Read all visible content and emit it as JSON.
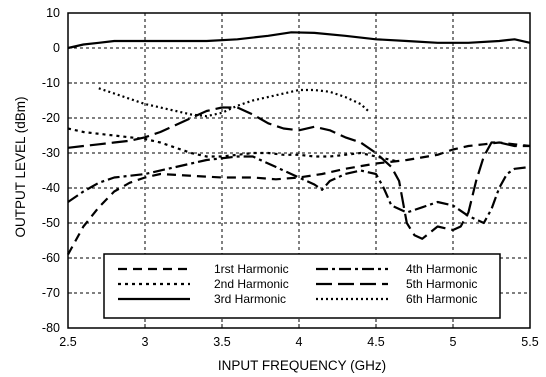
{
  "chart_data": {
    "type": "line",
    "title": "",
    "xlabel": "INPUT FREQUENCY (GHz)",
    "ylabel": "OUTPUT LEVEL (dBm)",
    "xlim": [
      2.5,
      5.5
    ],
    "ylim": [
      -80,
      10
    ],
    "x_ticks": [
      "2.5",
      "3",
      "3.5",
      "4",
      "4.5",
      "5",
      "5.5"
    ],
    "y_ticks": [
      "10",
      "0",
      "-10",
      "-20",
      "-30",
      "-40",
      "-50",
      "-60",
      "-70",
      "-80"
    ],
    "grid": true,
    "legend_position": "bottom-center",
    "series": [
      {
        "name": "1rst Harmonic",
        "style": "dash",
        "color": "#000000",
        "points": [
          [
            2.5,
            -59
          ],
          [
            2.55,
            -55
          ],
          [
            2.6,
            -51
          ],
          [
            2.7,
            -45.5
          ],
          [
            2.8,
            -41
          ],
          [
            2.9,
            -38.5
          ],
          [
            3.0,
            -37
          ],
          [
            3.1,
            -36
          ],
          [
            3.3,
            -36.5
          ],
          [
            3.5,
            -37
          ],
          [
            3.7,
            -37
          ],
          [
            3.85,
            -37.5
          ],
          [
            4.0,
            -37
          ],
          [
            4.15,
            -36
          ],
          [
            4.3,
            -34.5
          ],
          [
            4.5,
            -33
          ],
          [
            4.7,
            -32
          ],
          [
            4.9,
            -30.5
          ],
          [
            5.0,
            -29
          ],
          [
            5.1,
            -28
          ],
          [
            5.2,
            -27.5
          ],
          [
            5.3,
            -27
          ],
          [
            5.4,
            -27.5
          ],
          [
            5.5,
            -28
          ]
        ]
      },
      {
        "name": "2nd Harmonic",
        "style": "dot",
        "color": "#000000",
        "points": [
          [
            2.5,
            -23
          ],
          [
            2.6,
            -24
          ],
          [
            2.7,
            -24.5
          ],
          [
            2.8,
            -25
          ],
          [
            2.9,
            -25.5
          ],
          [
            3.0,
            -26
          ],
          [
            3.1,
            -27
          ],
          [
            3.2,
            -28.5
          ],
          [
            3.3,
            -30
          ],
          [
            3.4,
            -31
          ],
          [
            3.5,
            -31
          ],
          [
            3.6,
            -30.5
          ],
          [
            3.7,
            -30
          ],
          [
            3.8,
            -30
          ],
          [
            3.9,
            -30.5
          ],
          [
            4.0,
            -30.5
          ],
          [
            4.1,
            -31
          ],
          [
            4.2,
            -31
          ],
          [
            4.3,
            -30.5
          ],
          [
            4.4,
            -30
          ],
          [
            4.5,
            -31
          ],
          [
            4.6,
            -32
          ],
          [
            4.65,
            -32.5
          ]
        ]
      },
      {
        "name": "3rd Harmonic",
        "style": "solid",
        "color": "#000000",
        "points": [
          [
            2.5,
            0
          ],
          [
            2.6,
            1
          ],
          [
            2.7,
            1.5
          ],
          [
            2.8,
            2
          ],
          [
            3.0,
            2
          ],
          [
            3.2,
            2
          ],
          [
            3.4,
            2
          ],
          [
            3.6,
            2.5
          ],
          [
            3.8,
            3.5
          ],
          [
            3.95,
            4.5
          ],
          [
            4.1,
            4.3
          ],
          [
            4.3,
            3.5
          ],
          [
            4.5,
            2.5
          ],
          [
            4.7,
            2
          ],
          [
            4.9,
            1.5
          ],
          [
            5.1,
            1.5
          ],
          [
            5.3,
            2
          ],
          [
            5.4,
            2.5
          ],
          [
            5.5,
            1.5
          ]
        ]
      },
      {
        "name": "4th Harmonic",
        "style": "dashdot",
        "color": "#000000",
        "points": [
          [
            2.5,
            -44
          ],
          [
            2.6,
            -41
          ],
          [
            2.7,
            -38.5
          ],
          [
            2.8,
            -37
          ],
          [
            2.9,
            -36.5
          ],
          [
            3.0,
            -36
          ],
          [
            3.2,
            -34
          ],
          [
            3.4,
            -32
          ],
          [
            3.6,
            -31
          ],
          [
            3.7,
            -31
          ],
          [
            3.8,
            -33
          ],
          [
            3.9,
            -35
          ],
          [
            4.0,
            -37
          ],
          [
            4.1,
            -39
          ],
          [
            4.15,
            -40.5
          ],
          [
            4.2,
            -38
          ],
          [
            4.3,
            -36
          ],
          [
            4.4,
            -35
          ],
          [
            4.5,
            -36
          ],
          [
            4.55,
            -40
          ],
          [
            4.6,
            -45
          ],
          [
            4.7,
            -47
          ],
          [
            4.8,
            -45.5
          ],
          [
            4.9,
            -44
          ],
          [
            5.0,
            -45
          ],
          [
            5.1,
            -48
          ],
          [
            5.2,
            -50
          ],
          [
            5.25,
            -46
          ],
          [
            5.3,
            -40
          ],
          [
            5.35,
            -36
          ],
          [
            5.4,
            -34.5
          ],
          [
            5.5,
            -34
          ]
        ]
      },
      {
        "name": "5th Harmonic",
        "style": "longdash",
        "color": "#000000",
        "points": [
          [
            2.5,
            -28.5
          ],
          [
            2.6,
            -28
          ],
          [
            2.7,
            -27.5
          ],
          [
            2.8,
            -27
          ],
          [
            2.9,
            -26.5
          ],
          [
            3.0,
            -25.5
          ],
          [
            3.1,
            -24
          ],
          [
            3.2,
            -22
          ],
          [
            3.3,
            -20
          ],
          [
            3.4,
            -18
          ],
          [
            3.5,
            -17
          ],
          [
            3.6,
            -17
          ],
          [
            3.7,
            -19
          ],
          [
            3.8,
            -21.5
          ],
          [
            3.9,
            -23
          ],
          [
            4.0,
            -23.5
          ],
          [
            4.1,
            -22.5
          ],
          [
            4.2,
            -23.5
          ],
          [
            4.3,
            -25.5
          ],
          [
            4.4,
            -27
          ],
          [
            4.5,
            -30
          ],
          [
            4.6,
            -34
          ],
          [
            4.65,
            -38
          ],
          [
            4.7,
            -50
          ],
          [
            4.75,
            -53.5
          ],
          [
            4.8,
            -54.5
          ],
          [
            4.9,
            -51
          ],
          [
            5.0,
            -52
          ],
          [
            5.05,
            -51
          ],
          [
            5.1,
            -47
          ],
          [
            5.15,
            -38
          ],
          [
            5.2,
            -31
          ],
          [
            5.25,
            -27
          ],
          [
            5.3,
            -27
          ],
          [
            5.4,
            -28
          ],
          [
            5.5,
            -28
          ]
        ]
      },
      {
        "name": "6th Harmonic",
        "style": "shortdot",
        "color": "#000000",
        "points": [
          [
            2.7,
            -11.5
          ],
          [
            2.8,
            -13
          ],
          [
            2.9,
            -14.5
          ],
          [
            3.0,
            -16
          ],
          [
            3.1,
            -17
          ],
          [
            3.2,
            -18
          ],
          [
            3.3,
            -19
          ],
          [
            3.4,
            -19.5
          ],
          [
            3.5,
            -18.5
          ],
          [
            3.6,
            -16.5
          ],
          [
            3.7,
            -15
          ],
          [
            3.8,
            -14
          ],
          [
            3.9,
            -13
          ],
          [
            4.0,
            -12
          ],
          [
            4.1,
            -12
          ],
          [
            4.2,
            -12.5
          ],
          [
            4.3,
            -14
          ],
          [
            4.4,
            -16
          ],
          [
            4.45,
            -18
          ]
        ]
      }
    ]
  }
}
